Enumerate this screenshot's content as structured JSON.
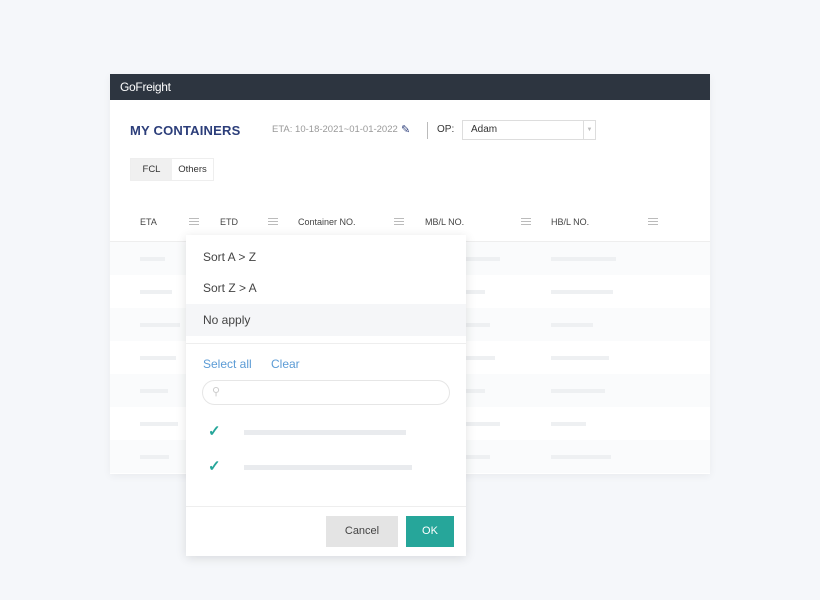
{
  "app": {
    "name": "GoFreight"
  },
  "header": {
    "title": "MY CONTAINERS",
    "eta_filter": "ETA: 10-18-2021~01-01-2022",
    "op_label": "OP:",
    "op_value": "Adam"
  },
  "tabs": [
    {
      "label": "FCL",
      "active": true
    },
    {
      "label": "Others",
      "active": false
    }
  ],
  "table": {
    "columns": [
      "ETA",
      "ETD",
      "Container NO.",
      "MB/L NO.",
      "HB/L NO."
    ]
  },
  "popup": {
    "sort_asc": "Sort A > Z",
    "sort_desc": "Sort Z > A",
    "no_apply": "No apply",
    "selected": "No apply",
    "select_all": "Select all",
    "clear": "Clear",
    "search_placeholder": "",
    "cancel": "Cancel",
    "ok": "OK"
  },
  "colors": {
    "topbar": "#2d3540",
    "accent": "#26a69a",
    "link": "#5b9bd5",
    "title": "#2c3e7a"
  }
}
